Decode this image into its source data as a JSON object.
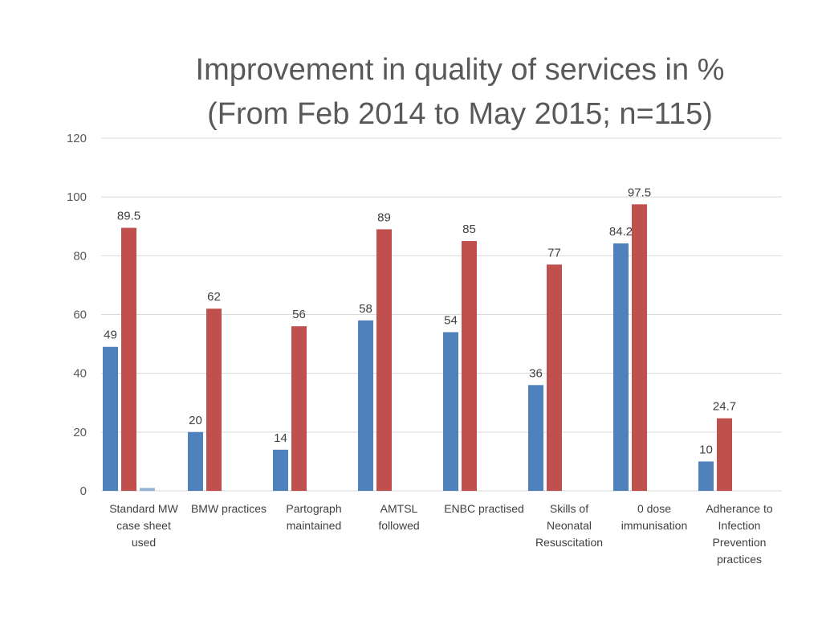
{
  "chart_data": {
    "type": "bar",
    "title_lines": [
      "Improvement in quality of services in %",
      "(From Feb 2014 to May 2015; n=115)"
    ],
    "xlabel": "",
    "ylabel": "",
    "ylim": [
      0,
      120
    ],
    "yticks": [
      0,
      20,
      40,
      60,
      80,
      100,
      120
    ],
    "grid": true,
    "legend": "none",
    "categories": [
      [
        "Standard MW",
        "case sheet",
        "used"
      ],
      [
        "BMW practices"
      ],
      [
        "Partograph",
        "maintained"
      ],
      [
        "AMTSL",
        "followed"
      ],
      [
        "ENBC practised"
      ],
      [
        "Skills of",
        "Neonatal",
        "Resuscitation"
      ],
      [
        "0 dose",
        "immunisation"
      ],
      [
        "Adherance to",
        "Infection",
        "Prevention",
        "practices"
      ]
    ],
    "series": [
      {
        "color": "#4f81bd",
        "values": [
          49,
          20,
          14,
          58,
          54,
          36,
          84.2,
          10
        ]
      },
      {
        "color": "#c0504d",
        "values": [
          89.5,
          62,
          56,
          89,
          85,
          77,
          97.5,
          24.7
        ]
      },
      {
        "color": "#95b3d7",
        "values": [
          1,
          null,
          null,
          null,
          null,
          null,
          null,
          null
        ],
        "labels_shown": false
      }
    ]
  }
}
